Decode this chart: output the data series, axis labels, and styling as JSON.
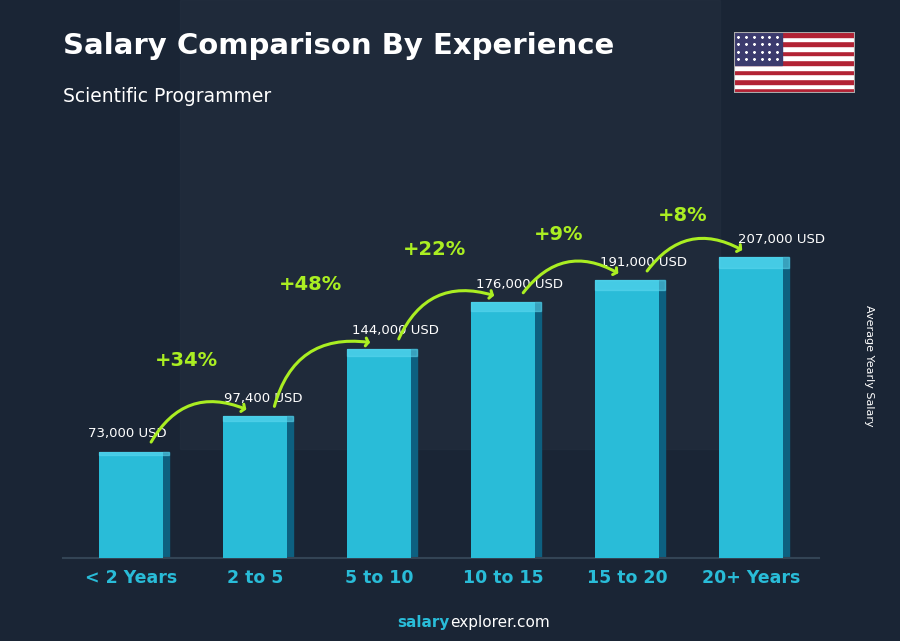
{
  "categories": [
    "< 2 Years",
    "2 to 5",
    "5 to 10",
    "10 to 15",
    "15 to 20",
    "20+ Years"
  ],
  "values": [
    73000,
    97400,
    144000,
    176000,
    191000,
    207000
  ],
  "value_labels": [
    "73,000 USD",
    "97,400 USD",
    "144,000 USD",
    "176,000 USD",
    "191,000 USD",
    "207,000 USD"
  ],
  "pct_changes": [
    "+34%",
    "+48%",
    "+22%",
    "+9%",
    "+8%"
  ],
  "bar_color": "#29bcd8",
  "bar_dark": "#1585a8",
  "bar_side": "#0d6080",
  "bg_color": "#1e2d3d",
  "title": "Salary Comparison By Experience",
  "subtitle": "Scientific Programmer",
  "ylabel": "Average Yearly Salary",
  "pct_color": "#aaee22",
  "label_color": "#ffffff",
  "title_color": "#ffffff",
  "arrow_color": "#aaee22",
  "footer_salary_color": "#29bcd8",
  "footer_rest_color": "#ffffff",
  "ylim": [
    0,
    265000
  ],
  "bar_width": 0.52
}
